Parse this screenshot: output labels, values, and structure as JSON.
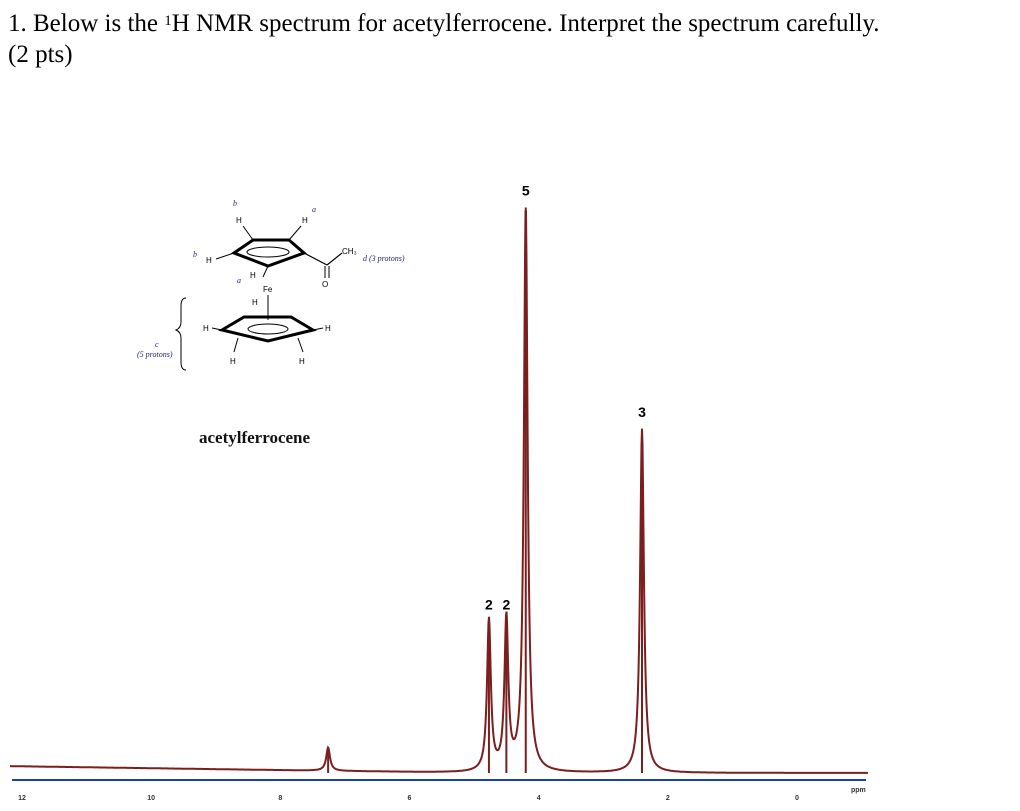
{
  "question": {
    "prefix": "1. Below is the ",
    "superscript": "1",
    "rest": "H NMR spectrum for acetylferrocene. Interpret the spectrum carefully.",
    "points": "(2 pts)"
  },
  "structure": {
    "compound_name": "acetylferrocene",
    "atoms": {
      "h": "H",
      "fe": "Fe",
      "o": "O",
      "ch3": "CH₃"
    },
    "annotations": {
      "a": "a",
      "b": "b",
      "c": "c",
      "d_label": "d (3 protons)",
      "c_label": "(5 protons)"
    }
  },
  "chart_data": {
    "type": "line",
    "title": "",
    "xlabel": "",
    "ylabel": "",
    "x_axis_reversed": true,
    "xlim": [
      12,
      0
    ],
    "x_ticks": [
      "12",
      "10",
      "8",
      "6",
      "4",
      "2",
      "0"
    ],
    "x_unit": "ppm",
    "grid": false,
    "peaks": [
      {
        "shift": 7.26,
        "intensity": 0.04,
        "integration": ""
      },
      {
        "shift": 4.77,
        "intensity": 0.26,
        "integration": "2"
      },
      {
        "shift": 4.5,
        "intensity": 0.26,
        "integration": "2"
      },
      {
        "shift": 4.2,
        "intensity": 0.97,
        "integration": "5"
      },
      {
        "shift": 2.4,
        "intensity": 0.59,
        "integration": "3"
      }
    ],
    "colors": {
      "spectrum": "#7a1e1e",
      "baseline": "#1a3fb0",
      "structure_labels": "#1c2a78"
    }
  }
}
